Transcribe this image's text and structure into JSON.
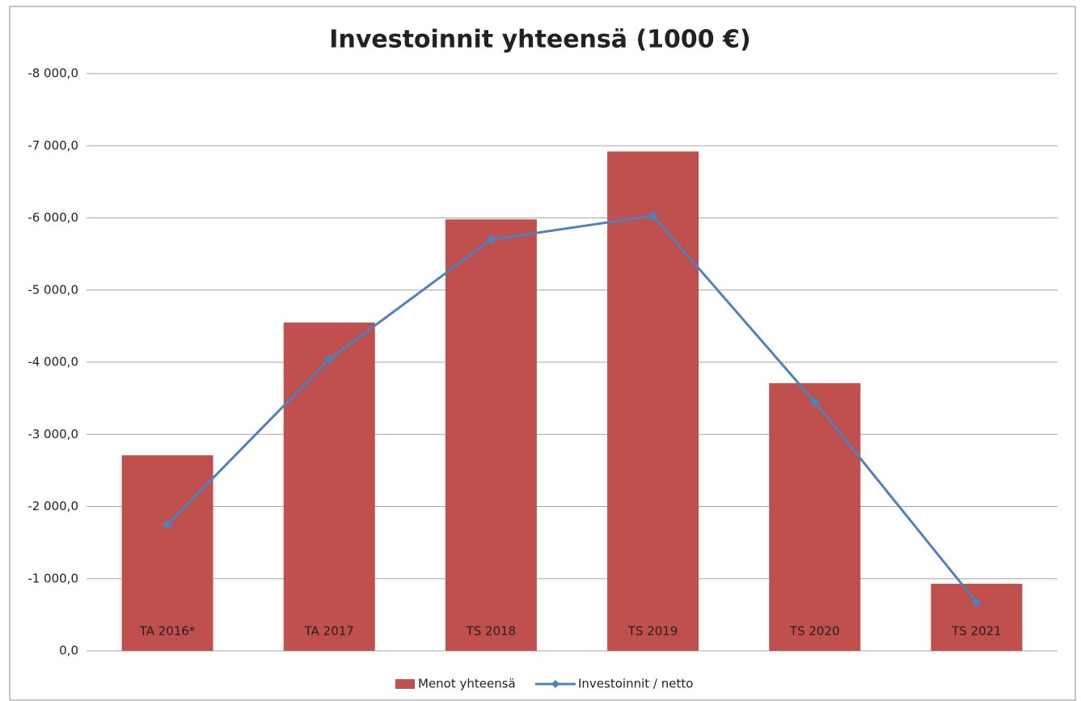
{
  "chart_data": {
    "type": "combo",
    "title": "Investoinnit yhteensä (1000 €)",
    "categories": [
      "TA 2016*",
      "TA 2017",
      "TS 2018",
      "TS 2019",
      "TS 2020",
      "TS 2021"
    ],
    "series": [
      {
        "name": "Menot yhteensä",
        "type": "bar",
        "color": "#c0504d",
        "values": [
          -2710,
          -4550,
          -5980,
          -6920,
          -3710,
          -930
        ]
      },
      {
        "name": "Investoinnit / netto",
        "type": "line",
        "color": "#4f81bd",
        "values": [
          -1750,
          -4040,
          -5700,
          -6030,
          -3450,
          -670
        ]
      }
    ],
    "ylim": [
      0,
      -8000
    ],
    "yticks": [
      {
        "value": 0,
        "label": "0,0"
      },
      {
        "value": -1000,
        "label": "-1 000,0"
      },
      {
        "value": -2000,
        "label": "-2 000,0"
      },
      {
        "value": -3000,
        "label": "-3 000,0"
      },
      {
        "value": -4000,
        "label": "-4 000,0"
      },
      {
        "value": -5000,
        "label": "-5 000,0"
      },
      {
        "value": -6000,
        "label": "-6 000,0"
      },
      {
        "value": -7000,
        "label": "-7 000,0"
      },
      {
        "value": -8000,
        "label": "-8 000,0"
      }
    ],
    "grid": true,
    "legend": "bottom"
  }
}
